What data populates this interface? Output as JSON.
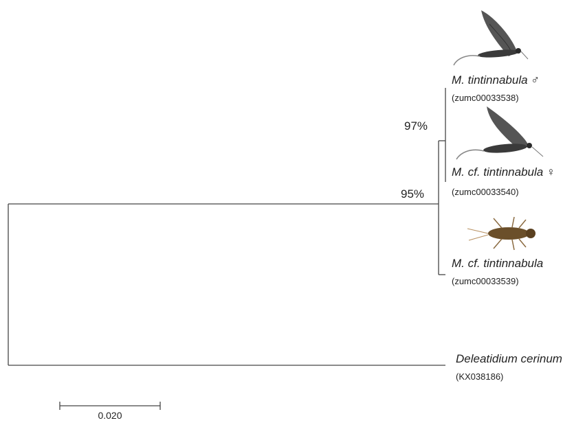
{
  "taxa": [
    {
      "name": "M. tintinnabula ♂",
      "accession": "(zumc00033538)"
    },
    {
      "name": "M. cf. tintinnabula ♀",
      "accession": "(zumc00033540)"
    },
    {
      "name": "M. cf. tintinnabula",
      "accession": "(zumc00033539)"
    },
    {
      "name": "Deleatidium cerinum",
      "accession": "(KX038186)"
    }
  ],
  "support": [
    "97%",
    "95%"
  ],
  "scale_bar": "0.020"
}
